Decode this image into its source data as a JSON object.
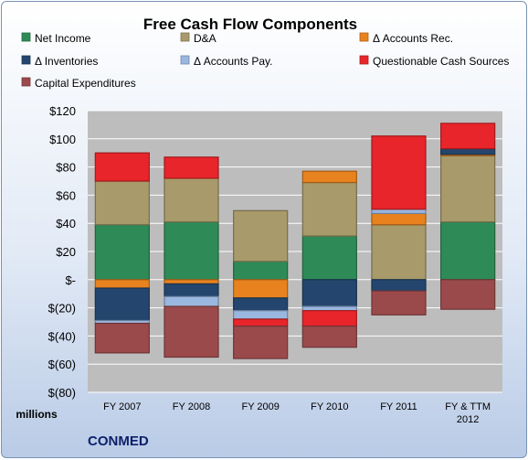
{
  "chart_data": {
    "type": "bar",
    "stacked": true,
    "title": "Free Cash Flow Components",
    "ylabel": "millions",
    "company": "CONMED",
    "ylim": [
      -80,
      120
    ],
    "yticks": [
      120,
      100,
      80,
      60,
      40,
      20,
      0,
      -20,
      -40,
      -60,
      -80
    ],
    "ytick_labels": [
      "$120",
      "$100",
      "$80",
      "$60",
      "$40",
      "$20",
      "$-",
      "$(20)",
      "$(40)",
      "$(60)",
      "$(80)"
    ],
    "grid": true,
    "legend_position": "top",
    "categories": [
      [
        "FY 2007"
      ],
      [
        "FY 2008"
      ],
      [
        "FY 2009"
      ],
      [
        "FY 2010"
      ],
      [
        "FY 2011"
      ],
      [
        "FY & TTM",
        "2012"
      ]
    ],
    "series": [
      {
        "name": "Net Income",
        "color": "#2e8b57",
        "values": [
          39,
          41,
          13,
          31,
          0,
          41
        ]
      },
      {
        "name": "D&A",
        "color": "#a89a6a",
        "values": [
          31,
          31,
          36,
          38,
          39,
          47
        ]
      },
      {
        "name": "Δ Accounts Rec.",
        "color": "#e8821e",
        "values": [
          -6,
          -3,
          -13,
          8,
          8,
          1
        ]
      },
      {
        "name": "Δ Inventories",
        "color": "#24466e",
        "values": [
          -23,
          -9,
          -9,
          -19,
          -8,
          4
        ]
      },
      {
        "name": "Δ Accounts Pay.",
        "color": "#9ab7e0",
        "values": [
          -2,
          -7,
          -6,
          -3,
          3,
          0
        ]
      },
      {
        "name": "Questionable Cash Sources",
        "color": "#e8252a",
        "values": [
          20,
          15,
          -5,
          -11,
          52,
          18
        ]
      },
      {
        "name": "Capital Expenditures",
        "color": "#9b4a4c",
        "values": [
          -21,
          -36,
          -23,
          -15,
          -17,
          -21
        ]
      }
    ]
  }
}
